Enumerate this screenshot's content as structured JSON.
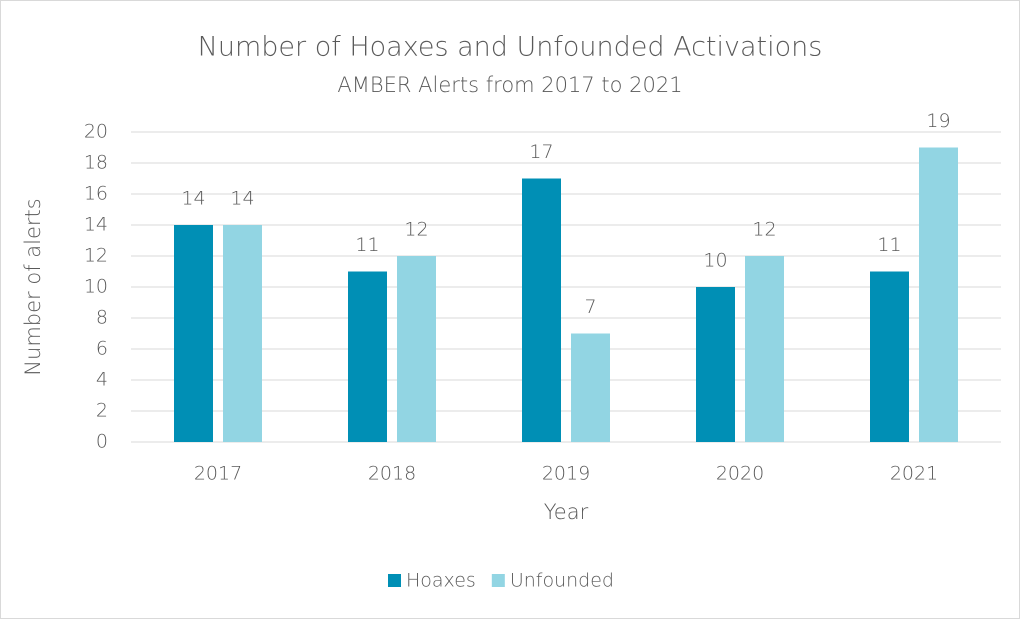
{
  "chart_data": {
    "type": "bar",
    "title": "Number of Hoaxes and Unfounded Activations",
    "subtitle": "AMBER Alerts from 2017 to 2021",
    "x_label": "Year",
    "y_label": "Number of alerts",
    "categories": [
      "2017",
      "2018",
      "2019",
      "2020",
      "2021"
    ],
    "series": [
      {
        "name": "Hoaxes",
        "color": "#008fb5",
        "values": [
          14,
          11,
          17,
          10,
          11
        ]
      },
      {
        "name": "Unfounded",
        "color": "#92d5e3",
        "values": [
          14,
          12,
          7,
          12,
          19
        ]
      }
    ],
    "ylim": [
      0,
      20
    ],
    "yticks": [
      0,
      2,
      4,
      6,
      8,
      10,
      12,
      14,
      16,
      18,
      20
    ],
    "grid": true,
    "legend": "bottom"
  }
}
